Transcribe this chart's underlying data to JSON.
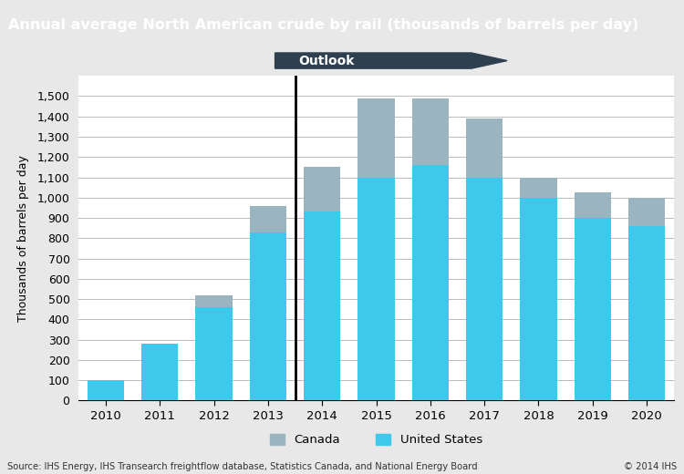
{
  "title": "Annual average North American crude by rail (thousands of barrels per day)",
  "ylabel": "Thousands of barrels per day",
  "source_text": "Source: IHS Energy, IHS Transearch freightflow database, Statistics Canada, and National Energy Board",
  "copyright_text": "© 2014 IHS",
  "years": [
    2010,
    2011,
    2012,
    2013,
    2014,
    2015,
    2016,
    2017,
    2018,
    2019,
    2020
  ],
  "us_values": [
    100,
    280,
    460,
    830,
    930,
    1100,
    1160,
    1100,
    1000,
    900,
    860
  ],
  "canada_values": [
    0,
    0,
    60,
    130,
    220,
    390,
    330,
    290,
    100,
    125,
    140
  ],
  "us_color": "#3EC8EC",
  "canada_color": "#9BB5C0",
  "chart_bg_color": "#FFFFFF",
  "outer_bg_color": "#E8E8E8",
  "title_bg_color": "#3A7CA5",
  "title_text_color": "#FFFFFF",
  "outlook_arrow_color": "#2E3F4F",
  "outlook_label": "Outlook",
  "ylim": [
    0,
    1600
  ],
  "yticks": [
    0,
    100,
    200,
    300,
    400,
    500,
    600,
    700,
    800,
    900,
    1000,
    1100,
    1200,
    1300,
    1400,
    1500
  ],
  "grid_color": "#BBBBBB",
  "legend_canada_label": "Canada",
  "legend_us_label": "United States",
  "divider_idx": 3
}
